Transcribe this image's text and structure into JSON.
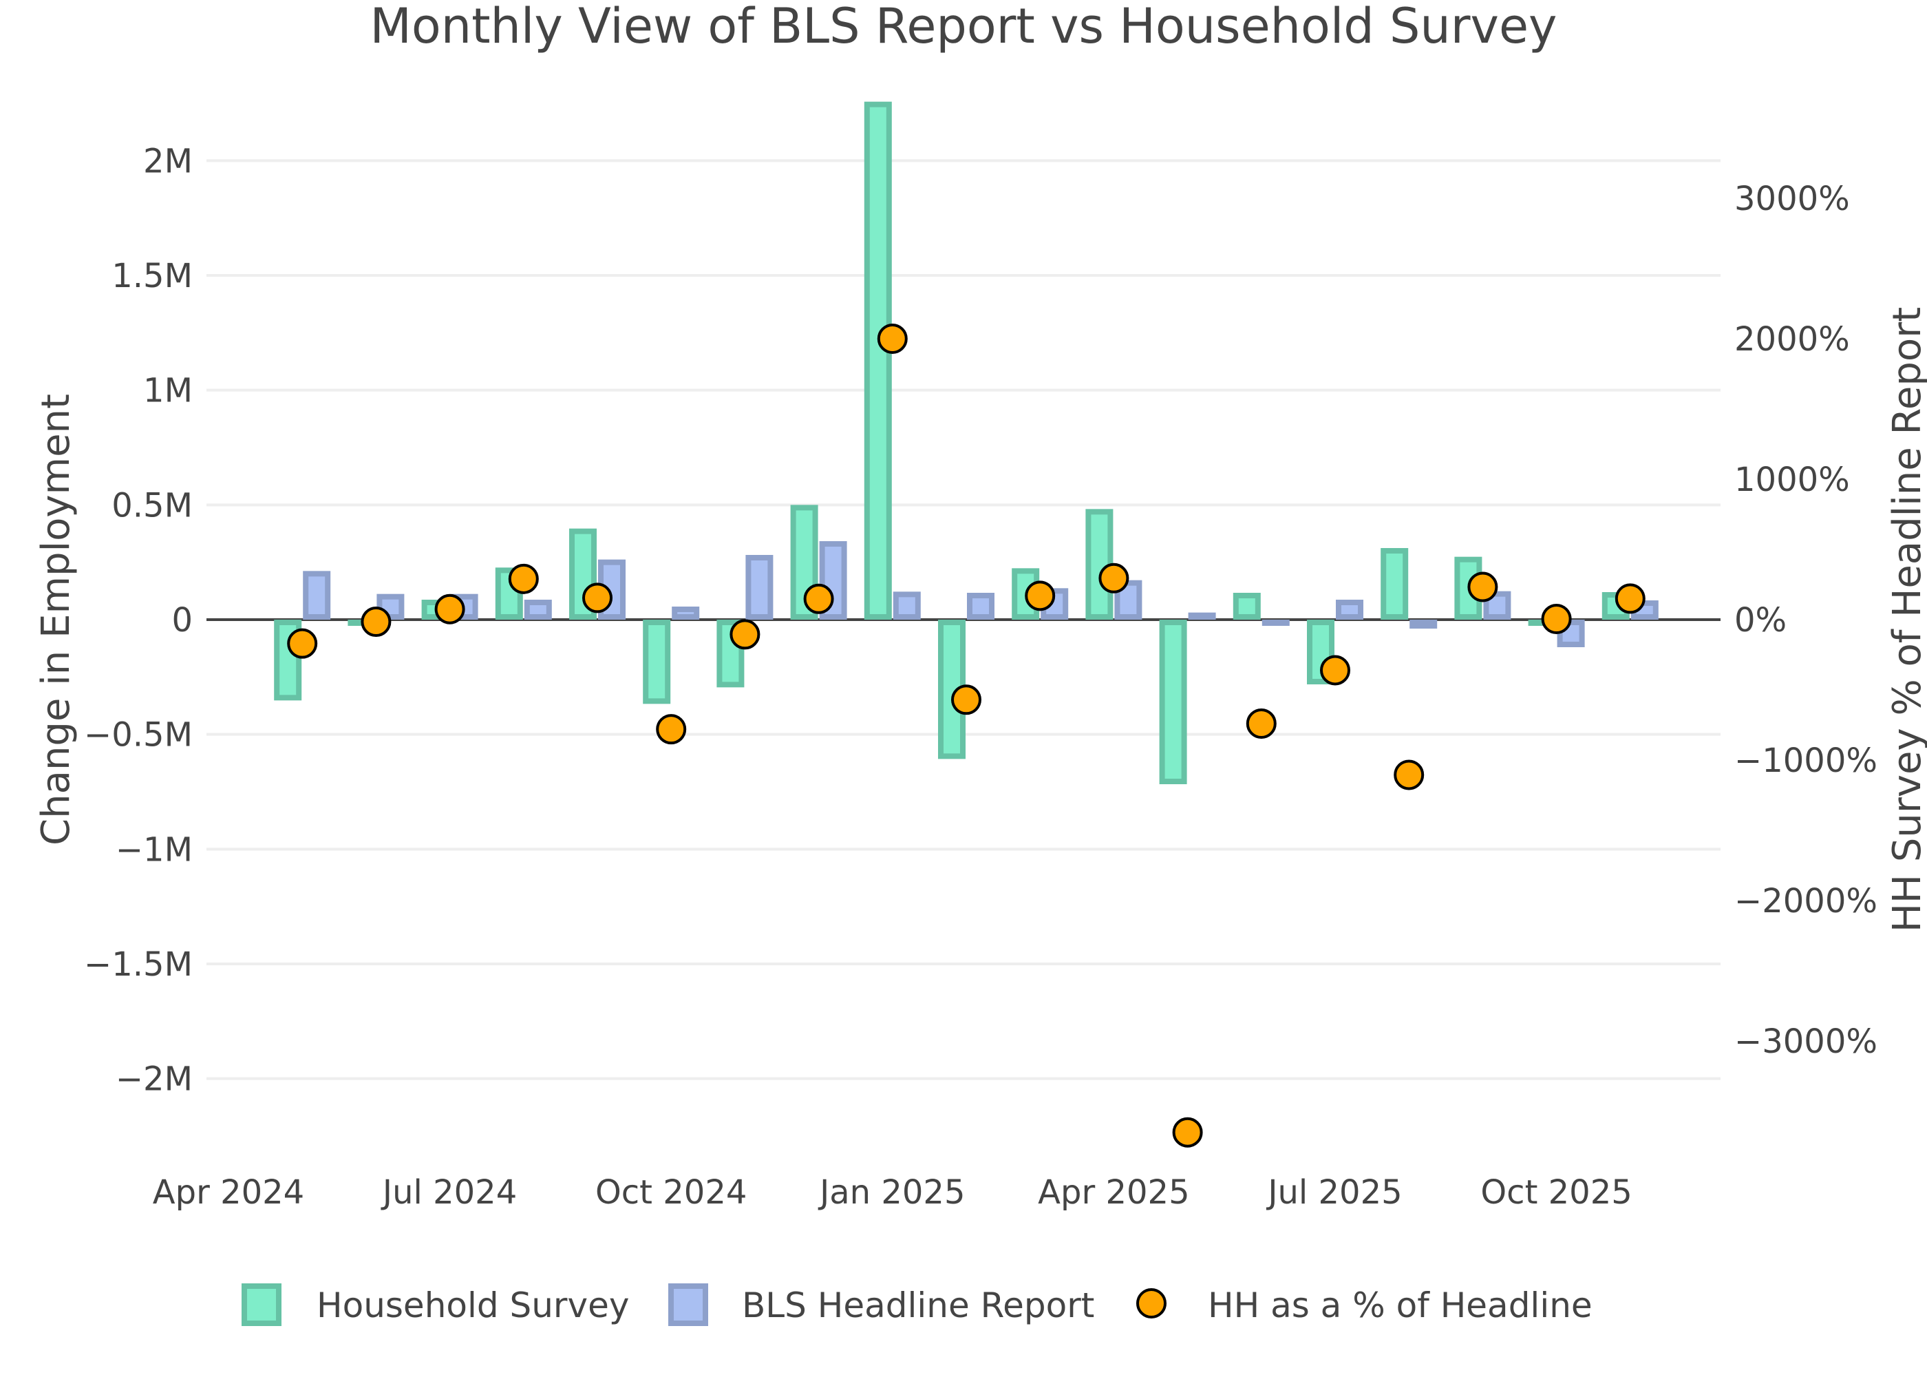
{
  "chart_data": {
    "type": "bar",
    "title": "Monthly View of BLS Report vs Household Survey",
    "xlabel": "",
    "ylabel": "Change in Employment",
    "y2label": "HH Survey % of Headline Report",
    "ylim": [
      -2.28,
      2.28
    ],
    "y_unit": "M",
    "y2lim": [
      -3725,
      3725
    ],
    "y2_unit": "%",
    "grid": true,
    "legend_position": "bottom-center",
    "x": [
      "2024-05",
      "2024-06",
      "2024-07",
      "2024-08",
      "2024-09",
      "2024-10",
      "2024-11",
      "2024-12",
      "2025-01",
      "2025-02",
      "2025-03",
      "2025-04",
      "2025-05",
      "2025-06",
      "2025-07",
      "2025-08",
      "2025-09",
      "2025-10",
      "2025-11"
    ],
    "x_ticks": [
      {
        "date": "2024-04",
        "label": "Apr 2024"
      },
      {
        "date": "2024-07",
        "label": "Jul 2024"
      },
      {
        "date": "2024-10",
        "label": "Oct 2024"
      },
      {
        "date": "2025-01",
        "label": "Jan 2025"
      },
      {
        "date": "2025-04",
        "label": "Apr 2025"
      },
      {
        "date": "2025-07",
        "label": "Jul 2025"
      },
      {
        "date": "2025-10",
        "label": "Oct 2025"
      }
    ],
    "y_ticks": [
      {
        "value": 2,
        "label": "2M"
      },
      {
        "value": 1.5,
        "label": "1.5M"
      },
      {
        "value": 1,
        "label": "1M"
      },
      {
        "value": 0.5,
        "label": "0.5M"
      },
      {
        "value": 0,
        "label": "0"
      },
      {
        "value": -0.5,
        "label": "−0.5M"
      },
      {
        "value": -1,
        "label": "−1M"
      },
      {
        "value": -1.5,
        "label": "−1.5M"
      },
      {
        "value": -2,
        "label": "−2M"
      }
    ],
    "y2_ticks": [
      {
        "value": 3000,
        "label": "3000%"
      },
      {
        "value": 2000,
        "label": "2000%"
      },
      {
        "value": 1000,
        "label": "1000%"
      },
      {
        "value": 0,
        "label": "0%"
      },
      {
        "value": -1000,
        "label": "−1000%"
      },
      {
        "value": -2000,
        "label": "−2000%"
      },
      {
        "value": -3000,
        "label": "−3000%"
      }
    ],
    "series": [
      {
        "name": "Household Survey",
        "type": "bar",
        "axis": "y",
        "fill": "#7FEDC9",
        "stroke": "#66C2A5",
        "values": [
          -0.34,
          -0.015,
          0.075,
          0.215,
          0.385,
          -0.355,
          -0.283,
          0.488,
          2.245,
          -0.595,
          0.212,
          0.47,
          -0.705,
          0.105,
          -0.27,
          0.3,
          0.262,
          -0.006,
          0.108
        ]
      },
      {
        "name": "BLS Headline Report",
        "type": "bar",
        "axis": "y",
        "fill": "#A9BFF2",
        "stroke": "#8DA0CB",
        "values": [
          0.2,
          0.1,
          0.1,
          0.075,
          0.25,
          0.045,
          0.27,
          0.33,
          0.11,
          0.105,
          0.125,
          0.16,
          0.019,
          -0.014,
          0.075,
          -0.027,
          0.112,
          -0.108,
          0.072
        ]
      },
      {
        "name": "HH as a % of Headline",
        "type": "scatter",
        "axis": "y2",
        "fill": "#FFA500",
        "stroke": "#000000",
        "values": [
          -170,
          -15,
          75,
          290,
          155,
          -780,
          -105,
          148,
          2000,
          -570,
          170,
          295,
          -3650,
          -740,
          -360,
          -1105,
          233,
          5,
          150
        ]
      }
    ]
  }
}
